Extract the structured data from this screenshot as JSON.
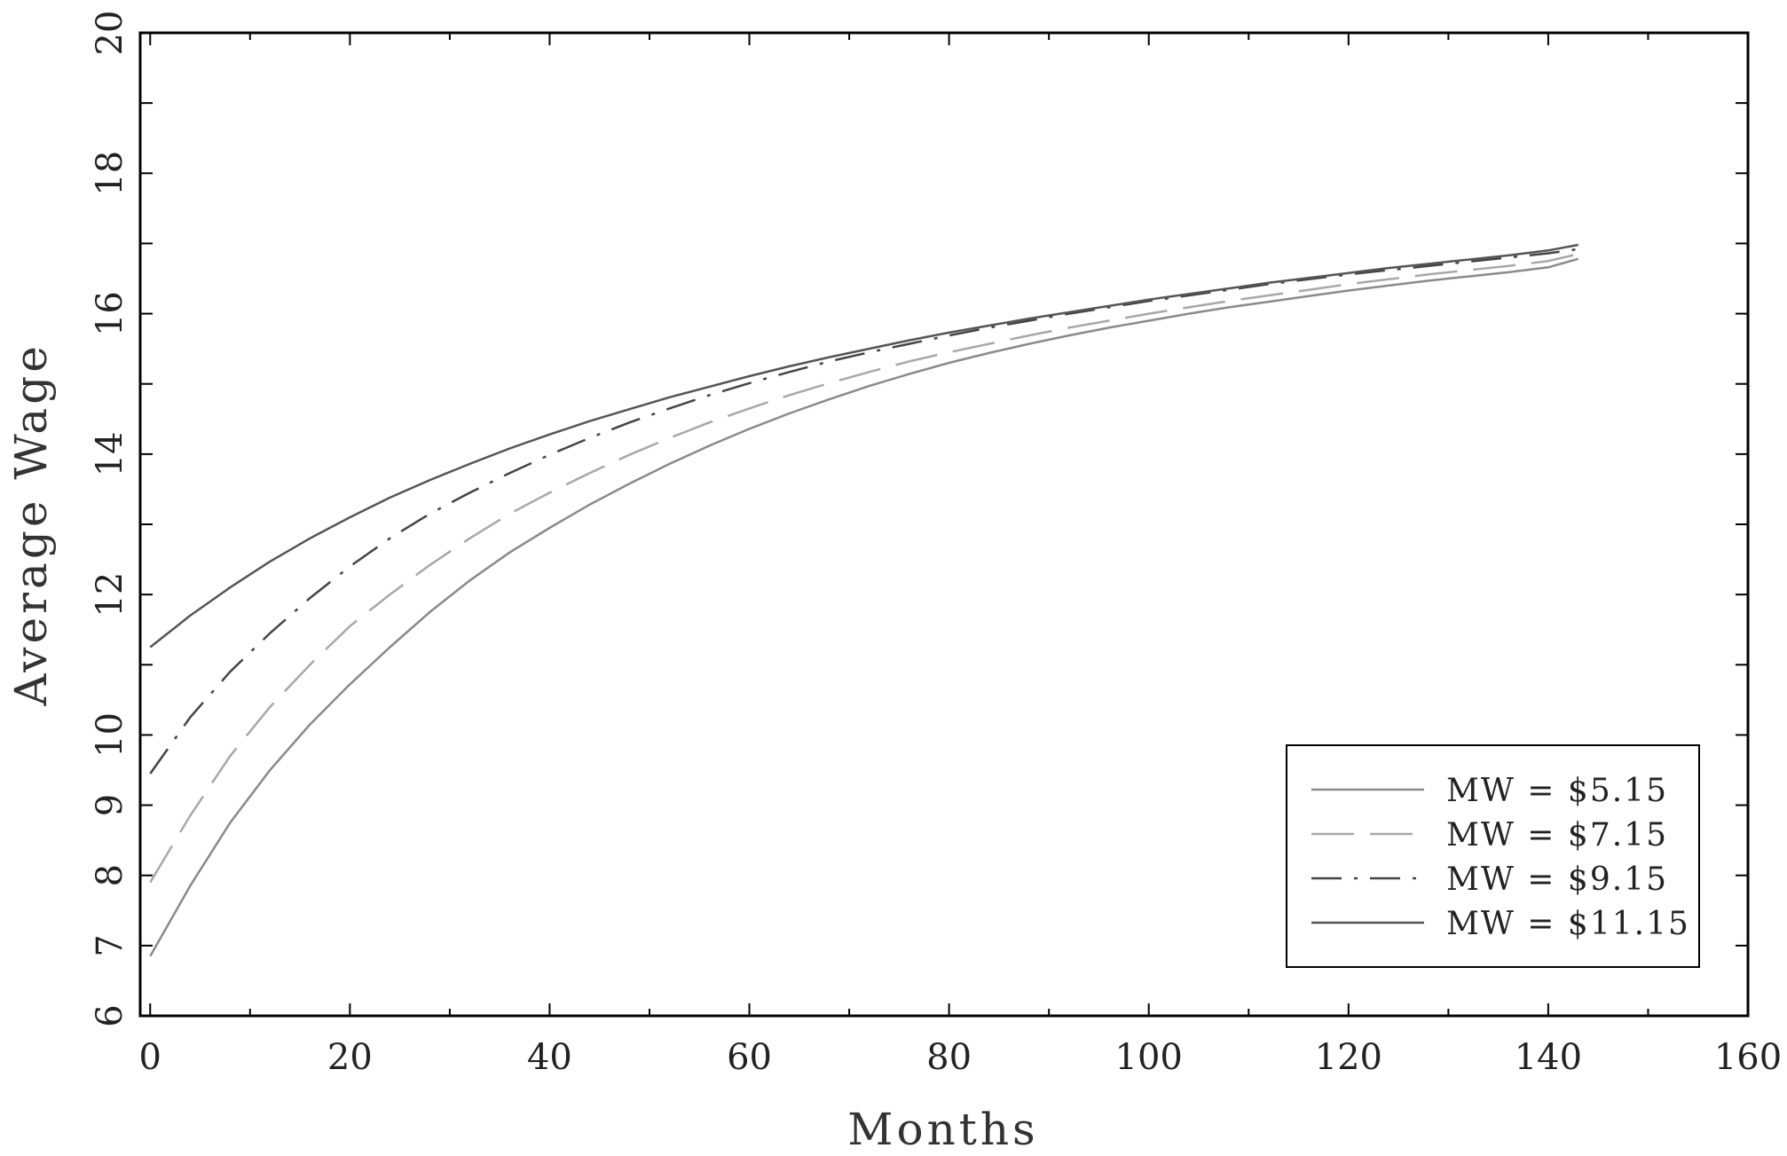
{
  "chart_data": {
    "type": "line",
    "xlabel": "Months",
    "ylabel": "Average Wage",
    "xlim": [
      -1,
      160
    ],
    "ylim": [
      6,
      20
    ],
    "xticks": [
      0,
      20,
      40,
      60,
      80,
      100,
      120,
      140,
      160
    ],
    "yticks": [
      6,
      7,
      8,
      9,
      10,
      12,
      14,
      16,
      18,
      20
    ],
    "legend": "bottom-right",
    "grid": false,
    "series": [
      {
        "name": "MW = $5.15",
        "color": "#8a8a8a",
        "dash": "solid",
        "x": [
          0,
          4,
          8,
          12,
          16,
          20,
          24,
          28,
          32,
          36,
          40,
          44,
          48,
          52,
          56,
          60,
          64,
          68,
          72,
          76,
          80,
          84,
          88,
          92,
          96,
          100,
          104,
          108,
          112,
          116,
          120,
          124,
          128,
          132,
          136,
          140,
          143
        ],
        "y": [
          6.85,
          7.85,
          8.75,
          9.5,
          10.15,
          10.72,
          11.25,
          11.75,
          12.2,
          12.6,
          12.95,
          13.28,
          13.58,
          13.86,
          14.12,
          14.36,
          14.58,
          14.78,
          14.97,
          15.14,
          15.3,
          15.44,
          15.57,
          15.69,
          15.8,
          15.9,
          16.0,
          16.09,
          16.17,
          16.25,
          16.33,
          16.4,
          16.47,
          16.53,
          16.59,
          16.66,
          16.78
        ]
      },
      {
        "name": "MW = $7.15",
        "color": "#a8a8a8",
        "dash": "long",
        "x": [
          0,
          4,
          8,
          12,
          16,
          20,
          24,
          28,
          32,
          36,
          40,
          44,
          48,
          52,
          56,
          60,
          64,
          68,
          72,
          76,
          80,
          84,
          88,
          92,
          96,
          100,
          104,
          108,
          112,
          116,
          120,
          124,
          128,
          132,
          136,
          140,
          143
        ],
        "y": [
          7.9,
          8.85,
          9.7,
          10.4,
          11.0,
          11.55,
          12.0,
          12.42,
          12.8,
          13.15,
          13.45,
          13.73,
          13.99,
          14.23,
          14.45,
          14.65,
          14.84,
          15.01,
          15.17,
          15.32,
          15.45,
          15.57,
          15.69,
          15.8,
          15.9,
          16.0,
          16.09,
          16.18,
          16.26,
          16.34,
          16.42,
          16.49,
          16.56,
          16.62,
          16.68,
          16.75,
          16.85
        ]
      },
      {
        "name": "MW = $9.15",
        "color": "#444444",
        "dash": "dashdot",
        "x": [
          0,
          4,
          8,
          12,
          16,
          20,
          24,
          28,
          32,
          36,
          40,
          44,
          48,
          52,
          56,
          60,
          64,
          68,
          72,
          76,
          80,
          84,
          88,
          92,
          96,
          100,
          104,
          108,
          112,
          116,
          120,
          124,
          128,
          132,
          136,
          140,
          143
        ],
        "y": [
          9.45,
          10.25,
          10.9,
          11.45,
          11.95,
          12.4,
          12.8,
          13.15,
          13.45,
          13.73,
          13.99,
          14.23,
          14.45,
          14.65,
          14.84,
          15.01,
          15.17,
          15.32,
          15.45,
          15.57,
          15.69,
          15.8,
          15.9,
          16.0,
          16.09,
          16.18,
          16.26,
          16.34,
          16.42,
          16.49,
          16.56,
          16.62,
          16.68,
          16.74,
          16.8,
          16.86,
          16.92
        ]
      },
      {
        "name": "MW = $11.15",
        "color": "#555555",
        "dash": "solid",
        "x": [
          0,
          4,
          8,
          12,
          16,
          20,
          24,
          28,
          32,
          36,
          40,
          44,
          48,
          52,
          56,
          60,
          64,
          68,
          72,
          76,
          80,
          84,
          88,
          92,
          96,
          100,
          104,
          108,
          112,
          116,
          120,
          124,
          128,
          132,
          136,
          140,
          143
        ],
        "y": [
          11.25,
          11.7,
          12.1,
          12.47,
          12.8,
          13.1,
          13.38,
          13.63,
          13.86,
          14.08,
          14.28,
          14.47,
          14.64,
          14.81,
          14.96,
          15.11,
          15.25,
          15.38,
          15.5,
          15.62,
          15.73,
          15.83,
          15.93,
          16.02,
          16.11,
          16.2,
          16.28,
          16.36,
          16.44,
          16.51,
          16.58,
          16.65,
          16.71,
          16.77,
          16.83,
          16.9,
          16.98
        ]
      }
    ]
  }
}
